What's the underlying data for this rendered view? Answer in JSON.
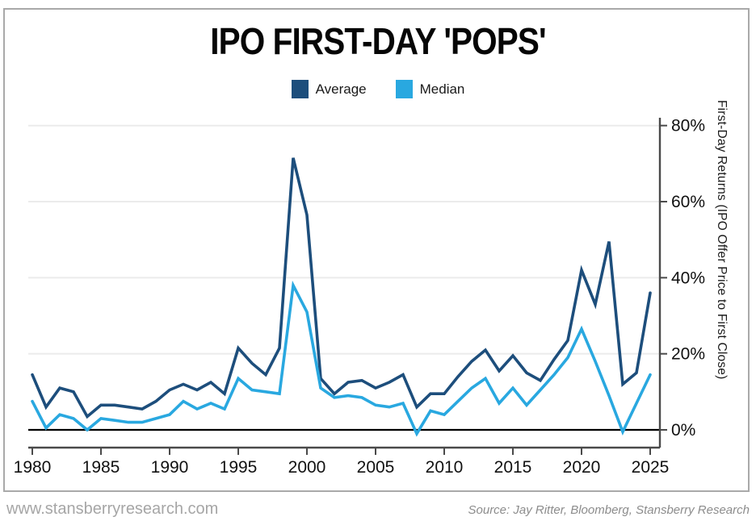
{
  "title": "IPO FIRST-DAY 'POPS'",
  "footer": {
    "website": "www.stansberryresearch.com",
    "source": "Source: Jay Ritter, Bloomberg, Stansberry Research"
  },
  "colors": {
    "average_line": "#1D4E7C",
    "median_line": "#29A8E0",
    "axis": "#4a4a4a",
    "grid": "#ebebeb",
    "zero_line": "#000000",
    "tick_text": "#111111",
    "border": "#a9a9a9"
  },
  "chart_data": {
    "type": "line",
    "title": "IPO FIRST-DAY 'POPS'",
    "ylabel": "First-Day Returns (IPO Offer Price to First Close)",
    "xlabel": "",
    "legend_position": "top",
    "grid": true,
    "ylim": [
      -4.5,
      82
    ],
    "xlim": [
      1980,
      2025
    ],
    "x_ticks": [
      1980,
      1985,
      1990,
      1995,
      2000,
      2005,
      2010,
      2015,
      2020,
      2025
    ],
    "y_tick_values": [
      0,
      20,
      40,
      60,
      80
    ],
    "y_tick_labels": [
      "0%",
      "20%",
      "40%",
      "60%",
      "80%"
    ],
    "x": [
      1980,
      1981,
      1982,
      1983,
      1984,
      1985,
      1986,
      1987,
      1988,
      1989,
      1990,
      1991,
      1992,
      1993,
      1994,
      1995,
      1996,
      1997,
      1998,
      1999,
      2000,
      2001,
      2002,
      2003,
      2004,
      2005,
      2006,
      2007,
      2008,
      2009,
      2010,
      2011,
      2012,
      2013,
      2014,
      2015,
      2016,
      2017,
      2018,
      2019,
      2020,
      2021,
      2022,
      2023,
      2024,
      2025
    ],
    "series": [
      {
        "name": "Average",
        "color": "#1D4E7C",
        "values": [
          14.5,
          6,
          11,
          10,
          3.5,
          6.5,
          6.5,
          6,
          5.5,
          7.5,
          10.5,
          12,
          10.5,
          12.5,
          9.5,
          21.5,
          17.5,
          14.5,
          21.5,
          71.5,
          56.5,
          13.5,
          9.5,
          12.5,
          13,
          11,
          12.5,
          14.5,
          6,
          9.5,
          9.5,
          14,
          18,
          21,
          15.5,
          19.5,
          15,
          13,
          18.5,
          23.5,
          42,
          33,
          49.5,
          12,
          15,
          36
        ]
      },
      {
        "name": "Median",
        "color": "#29A8E0",
        "values": [
          7.5,
          0.5,
          4,
          3,
          0,
          3,
          2.5,
          2,
          2,
          3,
          4,
          7.5,
          5.5,
          7,
          5.5,
          13.5,
          10.5,
          10,
          9.5,
          38,
          31,
          11,
          8.5,
          9,
          8.5,
          6.5,
          6,
          7,
          -1,
          5,
          4,
          7.5,
          11,
          13.5,
          7,
          11,
          6.5,
          10.5,
          14.5,
          19,
          26.5,
          18,
          9,
          -0.5,
          7,
          14.5
        ]
      }
    ]
  }
}
